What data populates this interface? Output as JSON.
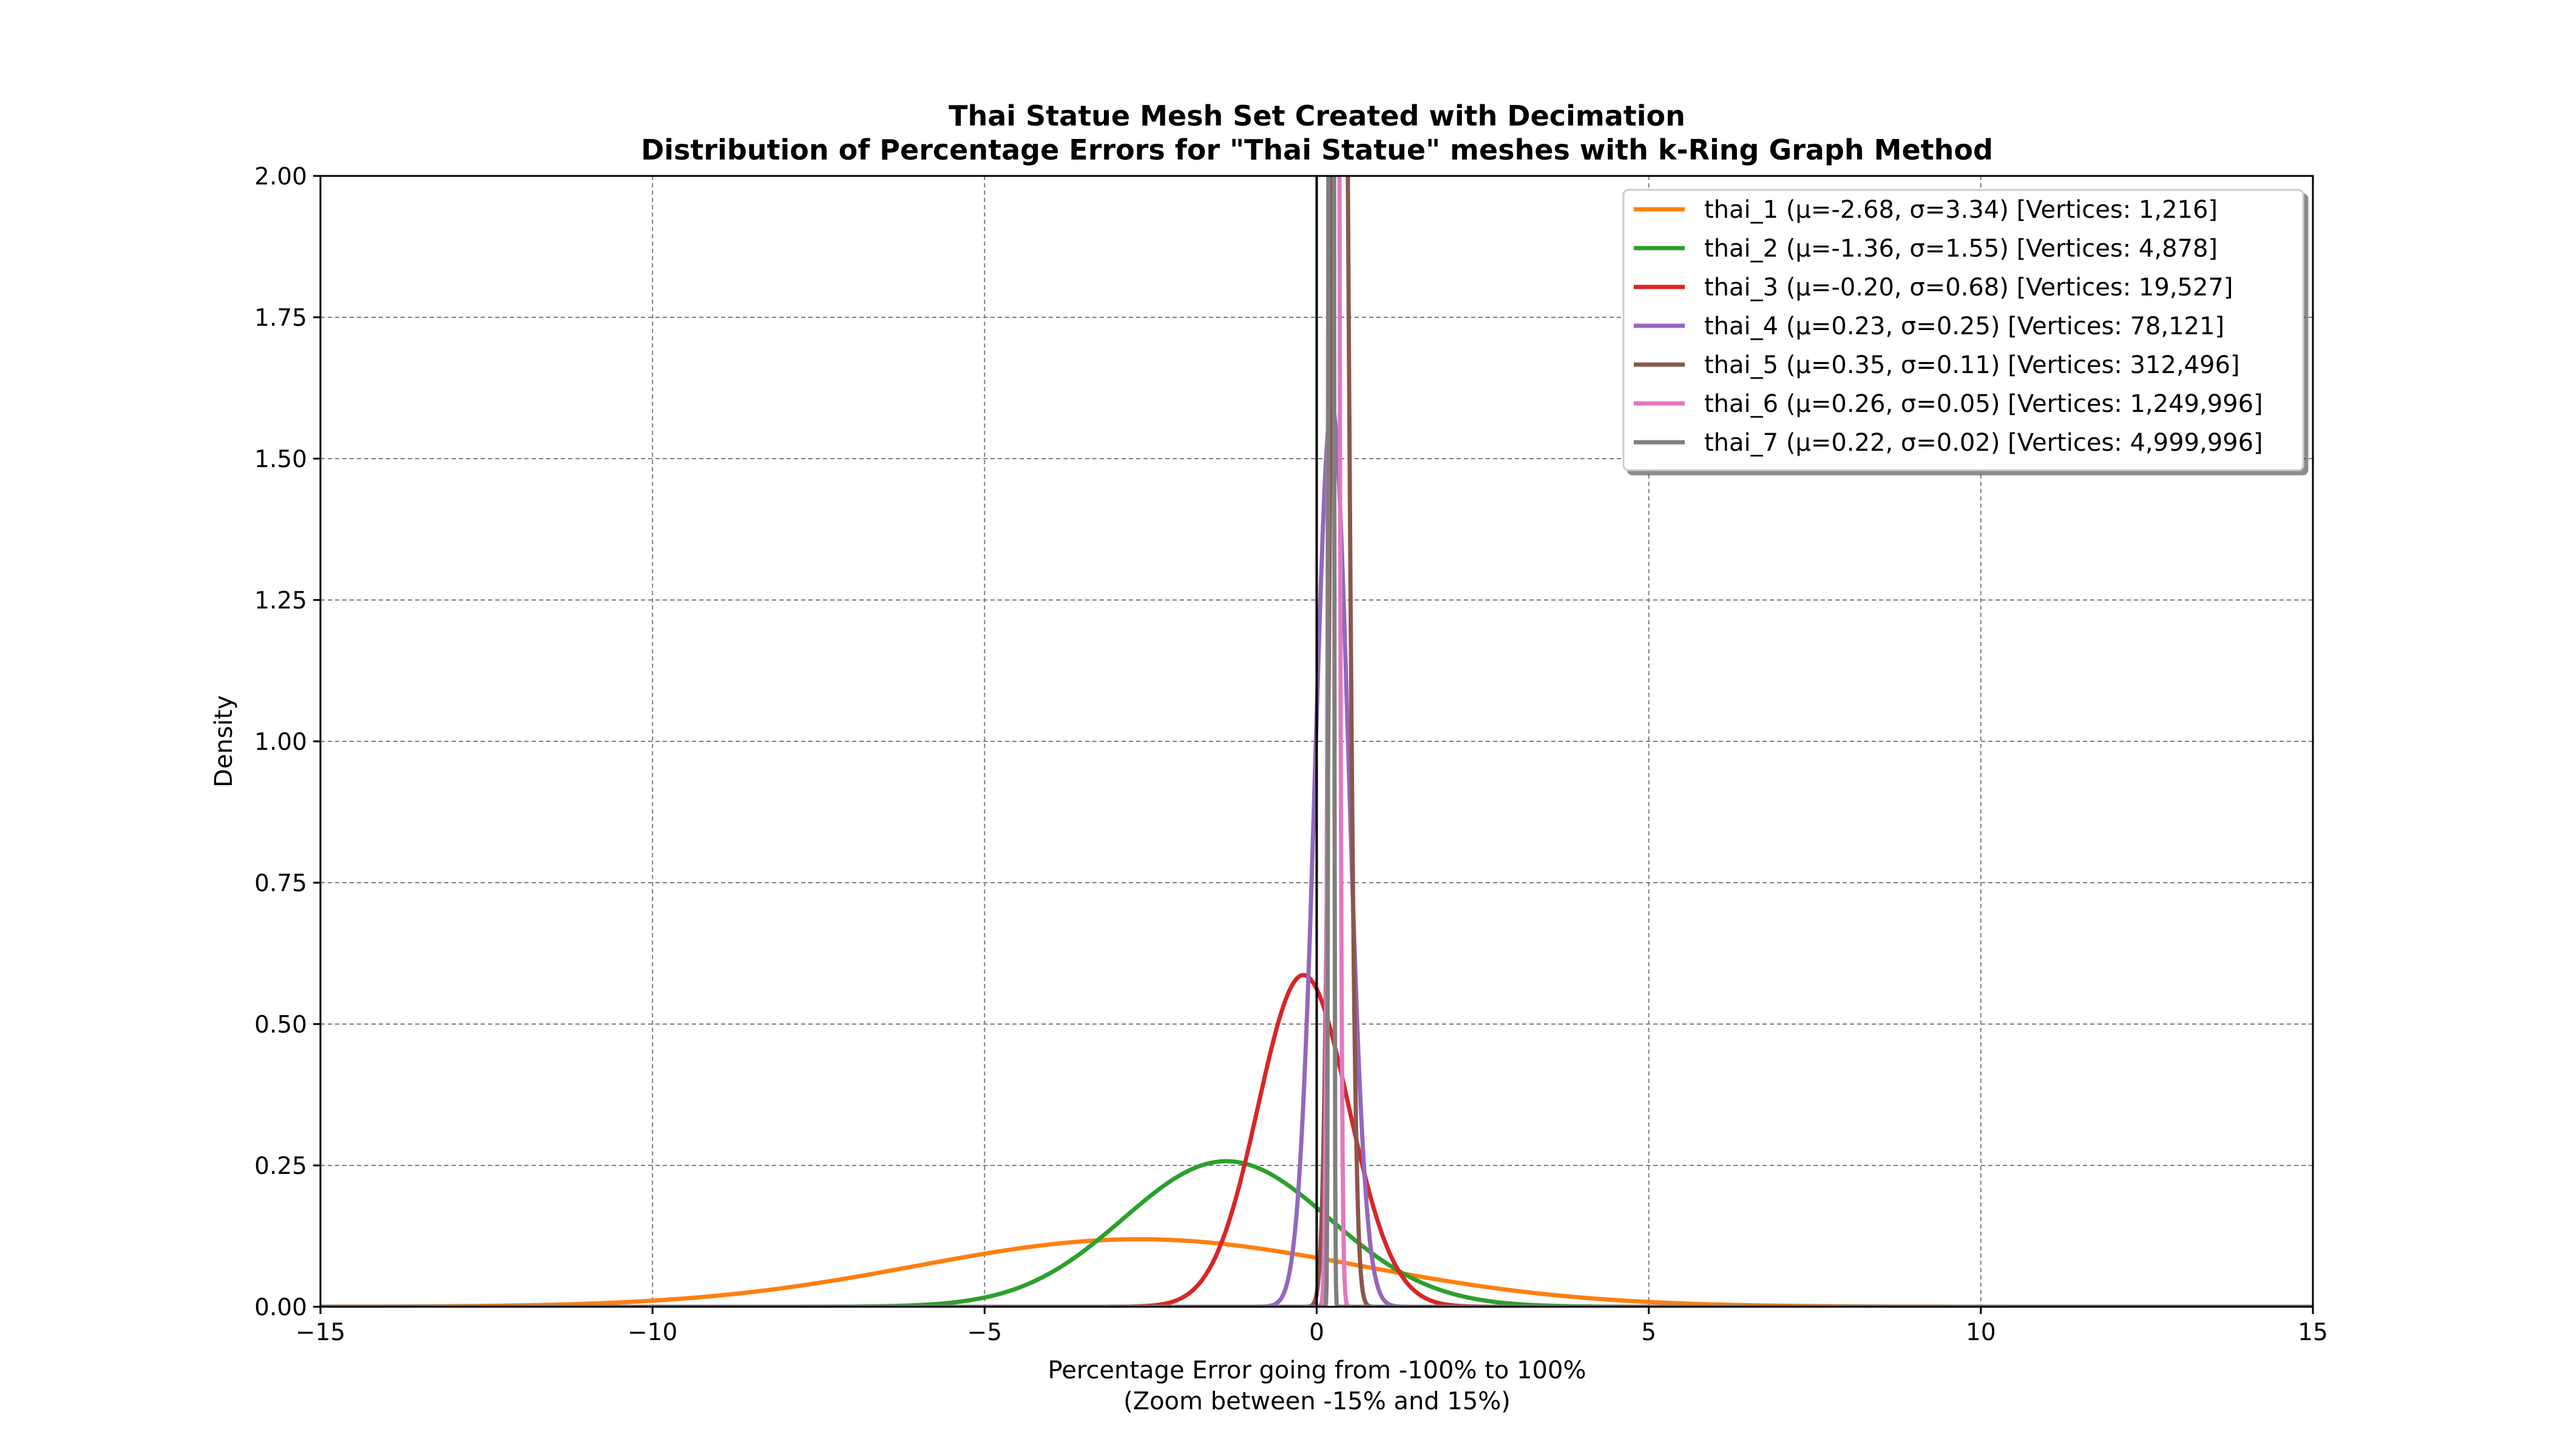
{
  "chart_data": {
    "type": "line",
    "title": "Thai Statue Mesh Set Created with Decimation",
    "subtitle": "Distribution of Percentage Errors for \"Thai Statue\" meshes with k-Ring Graph Method",
    "xlabel": "Percentage Error going from -100% to 100%",
    "xlabel_line2": "(Zoom between -15% and 15%)",
    "ylabel": "Density",
    "xlim": [
      -15,
      15
    ],
    "ylim": [
      0,
      2
    ],
    "x_ticks": [
      -15,
      -10,
      -5,
      0,
      5,
      10,
      15
    ],
    "x_tick_labels": [
      "−15",
      "−10",
      "−5",
      "0",
      "5",
      "10",
      "15"
    ],
    "y_ticks": [
      0,
      0.25,
      0.5,
      0.75,
      1.0,
      1.25,
      1.5,
      1.75,
      2.0
    ],
    "y_tick_labels": [
      "0.00",
      "0.25",
      "0.50",
      "0.75",
      "1.00",
      "1.25",
      "1.50",
      "1.75",
      "2.00"
    ],
    "grid": true,
    "legend_position": "upper-right",
    "vertical_line_x": 0,
    "series": [
      {
        "name": "thai_1 (μ=-2.68, σ=3.34) [Vertices: 1,216]",
        "mu": -2.68,
        "sigma": 3.34,
        "color": "#ff7f0e"
      },
      {
        "name": "thai_2 (μ=-1.36, σ=1.55) [Vertices: 4,878]",
        "mu": -1.36,
        "sigma": 1.55,
        "color": "#2ca02c"
      },
      {
        "name": "thai_3 (μ=-0.20, σ=0.68) [Vertices: 19,527]",
        "mu": -0.2,
        "sigma": 0.68,
        "color": "#d62728"
      },
      {
        "name": "thai_4 (μ=0.23, σ=0.25) [Vertices: 78,121]",
        "mu": 0.23,
        "sigma": 0.25,
        "color": "#9467bd"
      },
      {
        "name": "thai_5 (μ=0.35, σ=0.11) [Vertices: 312,496]",
        "mu": 0.35,
        "sigma": 0.11,
        "color": "#8c564b"
      },
      {
        "name": "thai_6 (μ=0.26, σ=0.05) [Vertices: 1,249,996]",
        "mu": 0.26,
        "sigma": 0.05,
        "color": "#e377c2"
      },
      {
        "name": "thai_7 (μ=0.22, σ=0.02) [Vertices: 4,999,996]",
        "mu": 0.22,
        "sigma": 0.02,
        "color": "#7f7f7f"
      }
    ]
  }
}
